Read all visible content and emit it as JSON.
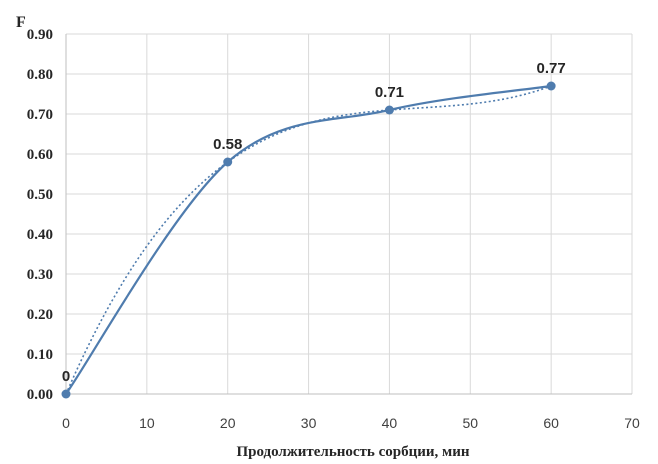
{
  "chart_data": {
    "type": "line",
    "xlabel": "Продолжительность сорбции, мин",
    "ylabel": "F",
    "xlim": [
      0,
      70
    ],
    "ylim": [
      0,
      0.9
    ],
    "x_ticks": [
      "0",
      "10",
      "20",
      "30",
      "40",
      "50",
      "60",
      "70"
    ],
    "y_ticks": [
      "0.00",
      "0.10",
      "0.20",
      "0.30",
      "0.40",
      "0.50",
      "0.60",
      "0.70",
      "0.80",
      "0.90"
    ],
    "grid": true,
    "legend": "none",
    "series": [
      {
        "x": [
          0,
          20,
          40,
          60
        ],
        "y": [
          0,
          0.58,
          0.71,
          0.77
        ],
        "labels": [
          "0",
          "0.58",
          "0.71",
          "0.77"
        ],
        "style": "smooth-solid",
        "markers": true
      },
      {
        "x": [
          0,
          20,
          40,
          60
        ],
        "y": [
          0,
          0.58,
          0.71,
          0.77
        ],
        "style": "dotted-trendline",
        "markers": false
      }
    ],
    "colors": {
      "series": "#4f7cae",
      "grid": "#d9d9d9",
      "axis": "#bfbfbf"
    }
  }
}
